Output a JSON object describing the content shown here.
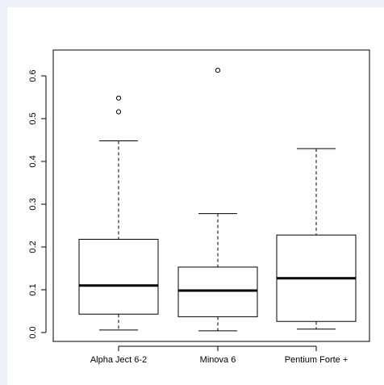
{
  "chart_data": {
    "type": "boxplot",
    "title": "",
    "xlabel": "",
    "ylabel": "",
    "ylim": [
      -0.005,
      0.64
    ],
    "yticks": [
      0.0,
      0.1,
      0.2,
      0.3,
      0.4,
      0.5,
      0.6
    ],
    "ytick_labels": [
      "0.0",
      "0.1",
      "0.2",
      "0.3",
      "0.4",
      "0.5",
      "0.6"
    ],
    "grid": false,
    "legend": "none",
    "categories": [
      "Alpha Ject 6-2",
      "Minova 6",
      "Pentium Forte +"
    ],
    "boxes": [
      {
        "whisker_low": 0.006,
        "q1": 0.043,
        "median": 0.11,
        "q3": 0.218,
        "whisker_high": 0.448,
        "outliers": [
          0.516,
          0.548
        ]
      },
      {
        "whisker_low": 0.004,
        "q1": 0.037,
        "median": 0.098,
        "q3": 0.153,
        "whisker_high": 0.278,
        "outliers": [
          0.613
        ]
      },
      {
        "whisker_low": 0.008,
        "q1": 0.026,
        "median": 0.127,
        "q3": 0.228,
        "whisker_high": 0.43,
        "outliers": []
      }
    ],
    "colors": {
      "box_fill": "#ffffff",
      "stroke": "#000000",
      "background": "#eef0f7",
      "panel": "#ffffff"
    }
  }
}
